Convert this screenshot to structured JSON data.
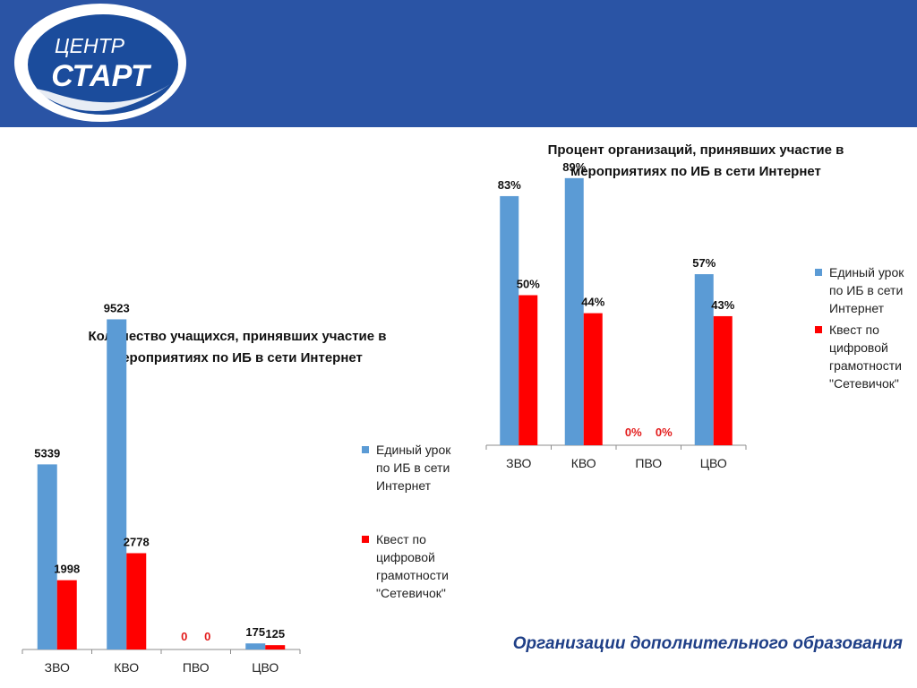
{
  "header": {
    "logo_line1": "ЦЕНТР",
    "logo_line2": "СТАРТ",
    "bg_color": "#2a54a5"
  },
  "footer": {
    "caption": "Организации дополнительного образования"
  },
  "colors": {
    "series1": "#5b9bd5",
    "series2": "#ff0000"
  },
  "chart_data": [
    {
      "type": "bar",
      "title": "Количество учащихся, принявших участие в мероприятиях по ИБ в сети Интернет",
      "categories": [
        "ЗВО",
        "КВО",
        "ПВО",
        "ЦВО"
      ],
      "series": [
        {
          "name": "Единый урок по ИБ в сети Интернет",
          "values": [
            5339,
            9523,
            0,
            175
          ],
          "labels": [
            "5339",
            "9523",
            "0",
            "175"
          ]
        },
        {
          "name": "Квест по цифровой грамотности \"Сетевичок\"",
          "values": [
            1998,
            2778,
            0,
            125
          ],
          "labels": [
            "1998",
            "2778",
            "0",
            "125"
          ]
        }
      ],
      "ylim": [
        0,
        10000
      ],
      "grid": false,
      "legend_position": "right"
    },
    {
      "type": "bar",
      "title": "Процент организаций, принявших участие в мероприятиях по ИБ в сети Интернет",
      "categories": [
        "ЗВО",
        "КВО",
        "ПВО",
        "ЦВО"
      ],
      "series": [
        {
          "name": "Единый урок по ИБ в сети Интернет",
          "values": [
            83,
            89,
            0,
            57
          ],
          "labels": [
            "83%",
            "89%",
            "0%",
            "57%"
          ]
        },
        {
          "name": "Квест по цифровой грамотности \"Сетевичок\"",
          "values": [
            50,
            44,
            0,
            43
          ],
          "labels": [
            "50%",
            "44%",
            "0%",
            "43%"
          ]
        }
      ],
      "ylim": [
        0,
        100
      ],
      "grid": false,
      "legend_position": "right"
    }
  ]
}
